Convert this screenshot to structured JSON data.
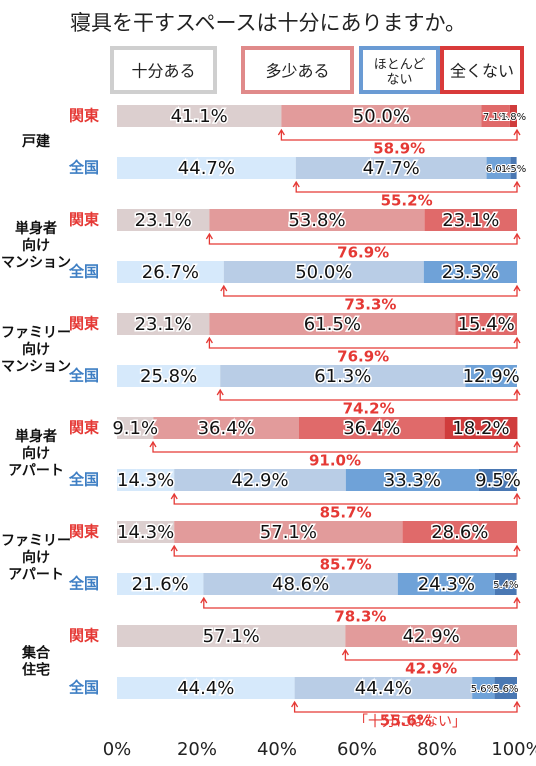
{
  "chart_data": {
    "type": "stacked-bar-horizontal",
    "title": "寝具を干すスペースは十分にありますか。",
    "regions": [
      "関東",
      "全国"
    ],
    "region_colors": [
      "#e53935",
      "#3f7fc4"
    ],
    "groups": [
      {
        "label": "戸建",
        "rows": [
          0,
          1
        ]
      },
      {
        "label": "単身者\n向け\nマンション",
        "rows": [
          2,
          3
        ]
      },
      {
        "label": "ファミリー\n向け\nマンション",
        "rows": [
          4,
          5
        ]
      },
      {
        "label": "単身者\n向け\nアパート",
        "rows": [
          6,
          7
        ]
      },
      {
        "label": "ファミリー\n向け\nアパート",
        "rows": [
          8,
          9
        ]
      },
      {
        "label": "集合\n住宅",
        "rows": [
          10,
          11
        ]
      }
    ],
    "categories": [
      "関東",
      "全国",
      "関東",
      "全国",
      "関東",
      "全国",
      "関東",
      "全国",
      "関東",
      "全国",
      "関東",
      "全国"
    ],
    "row_region": [
      0,
      1,
      0,
      1,
      0,
      1,
      0,
      1,
      0,
      1,
      0,
      1
    ],
    "series": [
      {
        "name": "十分ある",
        "colors": [
          "#dccfcf",
          "#d6e9fb"
        ],
        "border": "#cfcfcf",
        "values": [
          41.1,
          44.7,
          23.1,
          26.7,
          23.1,
          25.8,
          9.1,
          14.3,
          14.3,
          21.6,
          57.1,
          44.4
        ],
        "value_labels": [
          "41.1%",
          "44.7%",
          "23.1%",
          "26.7%",
          "23.1%",
          "25.8%",
          "9.1%",
          "14.3%",
          "14.3%",
          "21.6%",
          "57.1%",
          "44.4%"
        ]
      },
      {
        "name": "多少ある",
        "colors": [
          "#e29b9b",
          "#b9cde6"
        ],
        "border": "#e08a8a",
        "values": [
          50.0,
          47.7,
          53.8,
          50.0,
          61.5,
          61.3,
          36.4,
          42.9,
          57.1,
          48.6,
          42.9,
          44.4
        ],
        "value_labels": [
          "50.0%",
          "47.7%",
          "53.8%",
          "50.0%",
          "61.5%",
          "61.3%",
          "36.4%",
          "42.9%",
          "57.1%",
          "48.6%",
          "42.9%",
          "44.4%"
        ]
      },
      {
        "name": "ほとんど\nない",
        "colors": [
          "#e06a6a",
          "#6fa2d8"
        ],
        "border": "#6a9bd4",
        "values": [
          7.1,
          6.0,
          23.1,
          23.3,
          15.4,
          12.9,
          36.4,
          33.3,
          28.6,
          24.3,
          0,
          5.6
        ],
        "value_labels": [
          "7.1%",
          "6.0%",
          "23.1%",
          "23.3%",
          "15.4%",
          "12.9%",
          "36.4%",
          "33.3%",
          "28.6%",
          "24.3%",
          null,
          "5.6%"
        ]
      },
      {
        "name": "全くない",
        "colors": [
          "#d03c3c",
          "#4a78b3"
        ],
        "border": "#d93a3a",
        "values": [
          1.8,
          1.5,
          0,
          0,
          0,
          0,
          18.2,
          9.5,
          0,
          5.4,
          0,
          5.6
        ],
        "value_labels": [
          "1.8%",
          "1.5%",
          null,
          null,
          null,
          null,
          "18.2%",
          "9.5%",
          null,
          "5.4%",
          null,
          "5.6%"
        ]
      }
    ],
    "not_enough": {
      "values": [
        58.9,
        55.2,
        76.9,
        73.3,
        76.9,
        74.2,
        91.0,
        85.7,
        85.7,
        78.3,
        42.9,
        55.6
      ],
      "value_labels": [
        "58.9%",
        "55.2%",
        "76.9%",
        "73.3%",
        "76.9%",
        "74.2%",
        "91.0%",
        "85.7%",
        "85.7%",
        "78.3%",
        "42.9%",
        "55.6%"
      ],
      "color": "#e53935",
      "caption": "「十分にはない」"
    },
    "xlim": [
      0,
      100
    ],
    "xticks": [
      {
        "value": 0,
        "label": "0%"
      },
      {
        "value": 20,
        "label": "20%"
      },
      {
        "value": 40,
        "label": "40%"
      },
      {
        "value": 60,
        "label": "60%"
      },
      {
        "value": 80,
        "label": "80%"
      },
      {
        "value": 100,
        "label": "100%"
      }
    ]
  }
}
